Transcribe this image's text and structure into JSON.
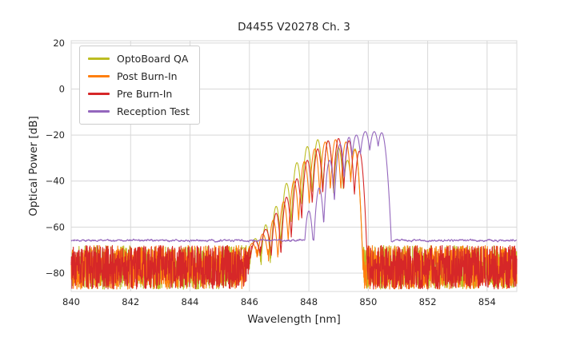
{
  "figure": {
    "title": "D4455 V20278 Ch. 3",
    "xlabel": "Wavelength [nm]",
    "ylabel": "Optical Power [dB]"
  },
  "chart_data": {
    "type": "line",
    "title": "D4455 V20278 Ch. 3",
    "xlabel": "Wavelength [nm]",
    "ylabel": "Optical Power [dB]",
    "xlim": [
      840,
      855
    ],
    "ylim": [
      -88,
      21
    ],
    "x_ticks": [
      840,
      842,
      844,
      846,
      848,
      850,
      852,
      854
    ],
    "y_ticks": [
      20,
      0,
      -20,
      -40,
      -60,
      -80
    ],
    "grid": true,
    "legend_position": "upper left",
    "background": "#ffffff",
    "grid_color": "#d8d8d8",
    "text_color": "#262626",
    "sample_step_nm": 0.008,
    "series": [
      {
        "name": "OptoBoard QA",
        "color": "#bcbd22",
        "noise": {
          "type": "hash",
          "floor_db": -87,
          "spread_db": 19,
          "seed": 11
        },
        "peak_halfwidth_nm": 0.24,
        "peaks_nm_db": [
          [
            845.8,
            -69,
            0.4
          ],
          [
            846.2,
            -65,
            0.35
          ],
          [
            846.55,
            -59
          ],
          [
            846.9,
            -51
          ],
          [
            847.25,
            -41
          ],
          [
            847.6,
            -32
          ],
          [
            847.95,
            -25
          ],
          [
            848.3,
            -22
          ],
          [
            848.65,
            -22.5
          ],
          [
            849.0,
            -25.5
          ],
          [
            849.3,
            -31
          ],
          [
            849.55,
            -26
          ]
        ]
      },
      {
        "name": "Post Burn-In",
        "color": "#ff7f0e",
        "noise": {
          "type": "hash",
          "floor_db": -87,
          "spread_db": 19,
          "seed": 22
        },
        "peak_halfwidth_nm": 0.24,
        "peaks_nm_db": [
          [
            846.1,
            -67,
            0.4
          ],
          [
            846.45,
            -63,
            0.35
          ],
          [
            846.8,
            -57
          ],
          [
            847.15,
            -49
          ],
          [
            847.5,
            -40
          ],
          [
            847.85,
            -31.5
          ],
          [
            848.2,
            -26
          ],
          [
            848.55,
            -23
          ],
          [
            848.9,
            -22
          ],
          [
            849.25,
            -23
          ],
          [
            849.55,
            -26.5
          ]
        ]
      },
      {
        "name": "Pre Burn-In",
        "color": "#d62728",
        "noise": {
          "type": "hash",
          "floor_db": -87,
          "spread_db": 19,
          "seed": 33
        },
        "peak_halfwidth_nm": 0.24,
        "peaks_nm_db": [
          [
            846.2,
            -66,
            0.4
          ],
          [
            846.55,
            -61,
            0.35
          ],
          [
            846.9,
            -54
          ],
          [
            847.25,
            -47
          ],
          [
            847.6,
            -39
          ],
          [
            847.95,
            -31
          ],
          [
            848.3,
            -26
          ],
          [
            848.65,
            -22.5
          ],
          [
            849.0,
            -21.5
          ],
          [
            849.35,
            -22.5
          ],
          [
            849.7,
            -27
          ]
        ]
      },
      {
        "name": "Reception Test",
        "color": "#9467bd",
        "noise": {
          "type": "smooth",
          "floor_db": -65.8,
          "spread_db": 1.4,
          "seed": 44
        },
        "peak_halfwidth_nm": 0.24,
        "peaks_nm_db": [
          [
            848.0,
            -53
          ],
          [
            848.35,
            -43
          ],
          [
            848.7,
            -31
          ],
          [
            849.05,
            -24
          ],
          [
            849.35,
            -21
          ],
          [
            849.6,
            -20,
            0.3
          ],
          [
            849.9,
            -18.5,
            0.33
          ],
          [
            850.2,
            -18.5,
            0.33
          ],
          [
            850.45,
            -19,
            0.3
          ]
        ]
      }
    ]
  }
}
